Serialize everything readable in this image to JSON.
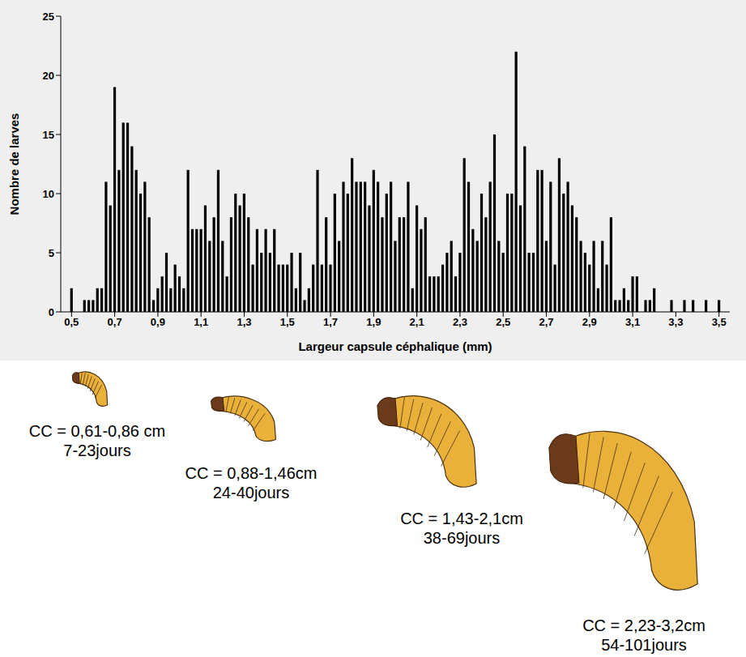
{
  "chart_data": {
    "type": "histogram",
    "x_label": "Largeur capsule céphalique (mm)",
    "y_label": "Nombre de larves",
    "bins": [
      0.49,
      0.51,
      0.53,
      0.55,
      0.57,
      0.59,
      0.61,
      0.63,
      0.65,
      0.67,
      0.69,
      0.71,
      0.73,
      0.75,
      0.77,
      0.79,
      0.81,
      0.83,
      0.85,
      0.87,
      0.89,
      0.91,
      0.93,
      0.95,
      0.97,
      0.99,
      1.01,
      1.03,
      1.05,
      1.07,
      1.09,
      1.11,
      1.13,
      1.15,
      1.17,
      1.19,
      1.21,
      1.23,
      1.25,
      1.27,
      1.29,
      1.31,
      1.33,
      1.35,
      1.37,
      1.39,
      1.41,
      1.43,
      1.45,
      1.47,
      1.49,
      1.51,
      1.53,
      1.55,
      1.57,
      1.59,
      1.61,
      1.63,
      1.65,
      1.67,
      1.69,
      1.71,
      1.73,
      1.75,
      1.77,
      1.79,
      1.81,
      1.83,
      1.85,
      1.87,
      1.89,
      1.91,
      1.93,
      1.95,
      1.97,
      1.99,
      2.01,
      2.03,
      2.05,
      2.07,
      2.09,
      2.11,
      2.13,
      2.15,
      2.17,
      2.19,
      2.21,
      2.23,
      2.25,
      2.27,
      2.29,
      2.31,
      2.33,
      2.35,
      2.37,
      2.39,
      2.41,
      2.43,
      2.45,
      2.47,
      2.49,
      2.51,
      2.53,
      2.55,
      2.57,
      2.59,
      2.61,
      2.63,
      2.65,
      2.67,
      2.69,
      2.71,
      2.73,
      2.75,
      2.77,
      2.79,
      2.81,
      2.83,
      2.85,
      2.87,
      2.89,
      2.91,
      2.93,
      2.95,
      2.97,
      2.99,
      3.01,
      3.03,
      3.05,
      3.07,
      3.09,
      3.11,
      3.13,
      3.15,
      3.17,
      3.19,
      3.21,
      3.23,
      3.25,
      3.27,
      3.29,
      3.31,
      3.33,
      3.35,
      3.37,
      3.39,
      3.41,
      3.43,
      3.45,
      3.47,
      3.49,
      3.51
    ],
    "values": [
      2,
      0,
      0,
      1,
      1,
      1,
      2,
      2,
      11,
      9,
      19,
      12,
      16,
      16,
      14,
      12,
      10,
      11,
      8,
      1,
      2,
      3,
      5,
      2,
      4,
      3,
      2,
      12,
      7,
      7,
      7,
      9,
      6,
      8,
      12,
      6,
      3,
      8,
      10,
      9,
      10,
      8,
      4,
      7,
      5,
      7,
      5,
      7,
      4,
      4,
      4,
      5,
      2,
      5,
      1,
      2,
      4,
      12,
      4,
      8,
      4,
      10,
      6,
      11,
      10,
      13,
      11,
      11,
      11,
      9,
      12,
      11,
      8,
      10,
      11,
      6,
      8,
      8,
      11,
      2,
      9,
      7,
      8,
      3,
      3,
      3,
      4,
      5,
      6,
      3,
      5,
      13,
      11,
      7,
      6,
      10,
      8,
      11,
      15,
      6,
      5,
      10,
      10,
      22,
      9,
      14,
      5,
      5,
      12,
      12,
      6,
      11,
      4,
      13,
      10,
      11,
      9,
      8,
      6,
      5,
      4,
      6,
      2,
      6,
      4,
      8,
      1,
      1,
      2,
      1,
      3,
      3,
      0,
      1,
      1,
      2,
      0,
      0,
      0,
      1,
      0,
      0,
      1,
      0,
      1,
      0,
      0,
      1,
      0,
      0,
      1
    ],
    "color": "#000000",
    "xlim": [
      0.45,
      3.55
    ],
    "xticks": [
      {
        "value": 0.5,
        "label": "0,5"
      },
      {
        "value": 0.7,
        "label": "0,7"
      },
      {
        "value": 0.9,
        "label": "0,9"
      },
      {
        "value": 1.1,
        "label": "1,1"
      },
      {
        "value": 1.3,
        "label": "1,3"
      },
      {
        "value": 1.5,
        "label": "1,5"
      },
      {
        "value": 1.7,
        "label": "1,7"
      },
      {
        "value": 1.9,
        "label": "1,9"
      },
      {
        "value": 2.1,
        "label": "2,1"
      },
      {
        "value": 2.3,
        "label": "2,3"
      },
      {
        "value": 2.5,
        "label": "2,5"
      },
      {
        "value": 2.7,
        "label": "2,7"
      },
      {
        "value": 2.9,
        "label": "2,9"
      },
      {
        "value": 3.1,
        "label": "3,1"
      },
      {
        "value": 3.3,
        "label": "3,3"
      },
      {
        "value": 3.5,
        "label": "3,5"
      }
    ],
    "ylim": [
      0,
      25
    ],
    "yticks": [
      0,
      5,
      10,
      15,
      20,
      25
    ],
    "grid": false
  },
  "stages": [
    {
      "caption": "CC = 0,61-0,86 cm",
      "duration": "7-23jours"
    },
    {
      "caption": "CC = 0,88-1,46cm",
      "duration": "24-40jours"
    },
    {
      "caption": "CC = 1,43-2,1cm",
      "duration": "38-69jours"
    },
    {
      "caption": "CC = 2,23-3,2cm",
      "duration": "54-101jours"
    }
  ]
}
